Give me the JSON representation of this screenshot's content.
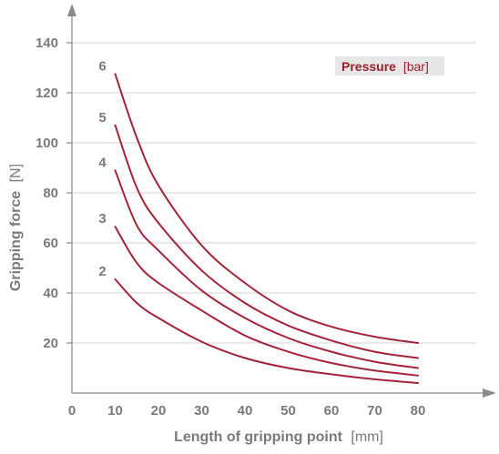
{
  "chart_data": {
    "type": "line",
    "x_title": "Length of gripping point",
    "x_unit": "[mm]",
    "y_title": "Gripping force",
    "y_unit": "[N]",
    "legend_title": "Pressure",
    "legend_unit": "[bar]",
    "legend_position": "top-right",
    "x_ticks": [
      "0",
      "10",
      "20",
      "30",
      "40",
      "50",
      "60",
      "70",
      "80"
    ],
    "y_ticks": [
      "20",
      "40",
      "60",
      "80",
      "100",
      "120",
      "140"
    ],
    "xlim": [
      0,
      80
    ],
    "ylim": [
      0,
      140
    ],
    "grid": true,
    "series": [
      {
        "name": "2",
        "x": [
          10,
          15,
          20,
          30,
          40,
          50,
          60,
          70,
          80
        ],
        "y": [
          45.5,
          36,
          30,
          20.5,
          14,
          10,
          7.5,
          5.5,
          4
        ]
      },
      {
        "name": "3",
        "x": [
          10,
          15,
          20,
          30,
          40,
          50,
          60,
          70,
          80
        ],
        "y": [
          66.5,
          52,
          44,
          33,
          23,
          16.5,
          12,
          9,
          7
        ]
      },
      {
        "name": "4",
        "x": [
          10,
          15,
          20,
          30,
          40,
          50,
          60,
          70,
          80
        ],
        "y": [
          89,
          67,
          57,
          41,
          30,
          22,
          16.5,
          12.5,
          10
        ]
      },
      {
        "name": "5",
        "x": [
          10,
          15,
          20,
          30,
          40,
          50,
          60,
          70,
          80
        ],
        "y": [
          107,
          82,
          68,
          49,
          36,
          27,
          21,
          16.5,
          14
        ]
      },
      {
        "name": "6",
        "x": [
          10,
          15,
          20,
          30,
          40,
          50,
          60,
          70,
          80
        ],
        "y": [
          127.5,
          102,
          83,
          59,
          44,
          33,
          26.5,
          22.5,
          20
        ]
      }
    ]
  },
  "colors": {
    "curve": "#a5233a",
    "legend_text": "#9b1d2e",
    "legend_box": "#e7e7e7",
    "axis_text": "#7a7a7a",
    "grid": "#d3d3d3"
  }
}
